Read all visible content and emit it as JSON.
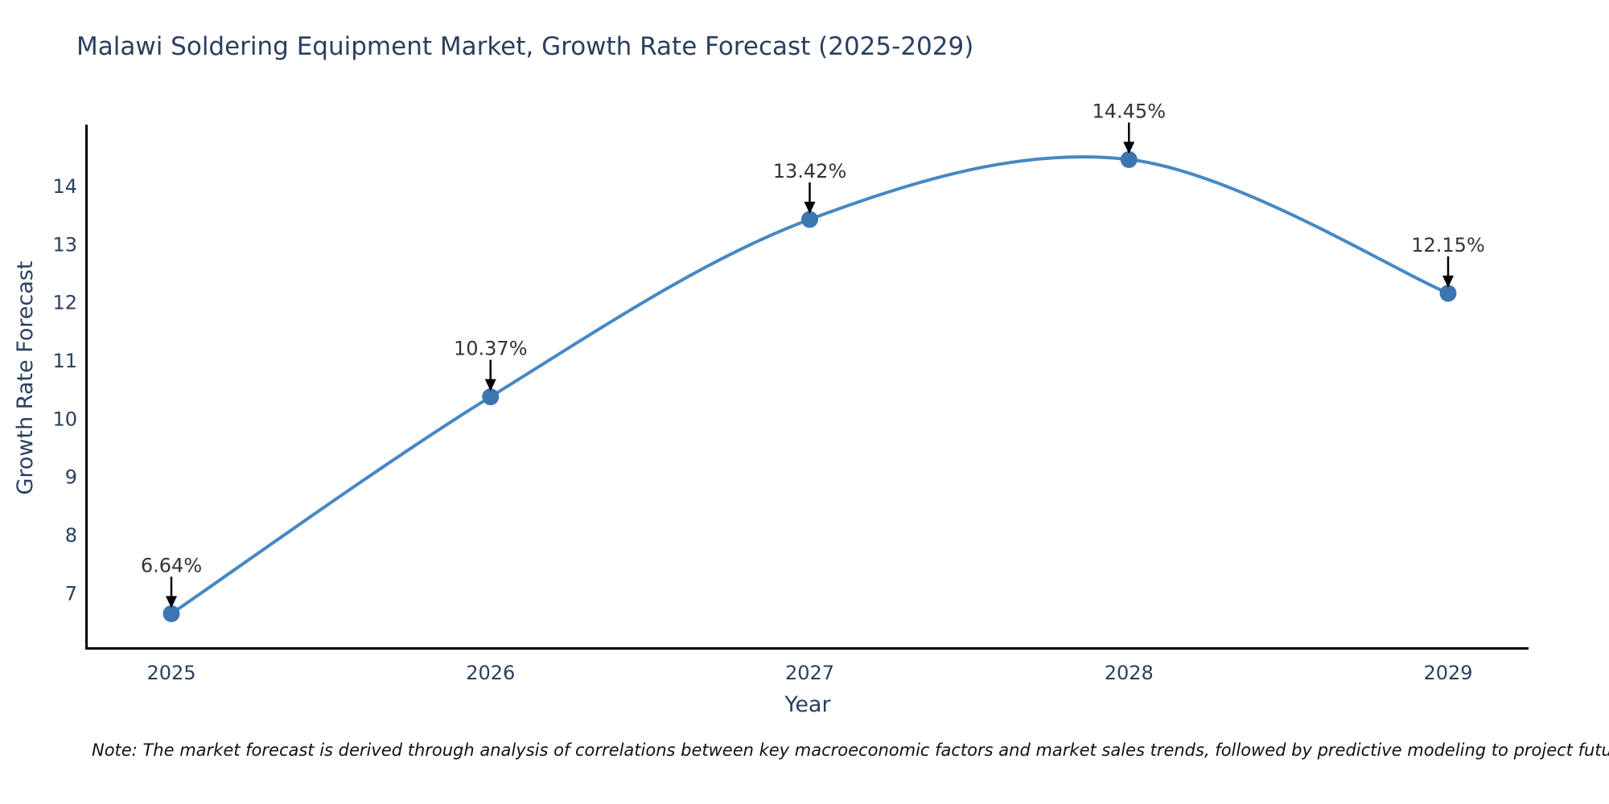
{
  "chart_data": {
    "type": "line",
    "title": "Malawi Soldering Equipment Market, Growth Rate Forecast (2025-2029)",
    "xlabel": "Year",
    "ylabel": "Growth Rate Forecast",
    "categories": [
      "2025",
      "2026",
      "2027",
      "2028",
      "2029"
    ],
    "values": [
      6.64,
      10.37,
      13.42,
      14.45,
      12.15
    ],
    "point_labels": [
      "6.64%",
      "10.37%",
      "13.42%",
      "14.45%",
      "12.15%"
    ],
    "yticks": [
      7,
      8,
      9,
      10,
      11,
      12,
      13,
      14
    ],
    "ylim": [
      6.05,
      15.05
    ],
    "line_shape": "spline",
    "grid": false,
    "legend": "none",
    "colors": {
      "line": "#4688c3",
      "marker": "#3b76b0",
      "axis_line": "#000000",
      "tick_text": "#2a3f5f",
      "title_text": "#2a3f5f",
      "annotation_text": "#333333",
      "arrow": "#000000",
      "background": "#ffffff"
    }
  },
  "note": {
    "text": "Note: The market forecast is derived through analysis of correlations between key macroeconomic factors and market sales trends, followed by predictive modeling to project future sales."
  }
}
